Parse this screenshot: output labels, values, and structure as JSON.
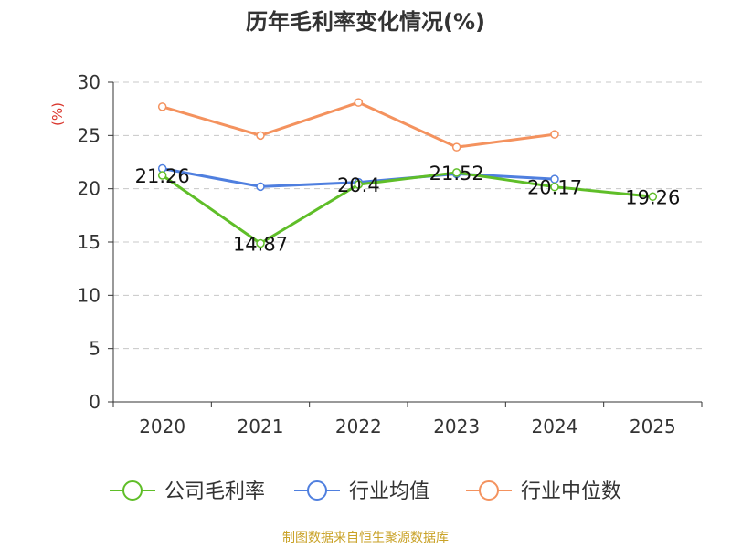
{
  "chart_data": {
    "type": "line",
    "title": "历年毛利率变化情况(%)",
    "ylabel": "(%)",
    "xlabel": "",
    "categories": [
      "2020",
      "2021",
      "2022",
      "2023",
      "2024",
      "2025"
    ],
    "ylim": [
      0,
      30
    ],
    "yticks": [
      0,
      5,
      10,
      15,
      20,
      25,
      30
    ],
    "grid": true,
    "legend_position": "bottom",
    "series": [
      {
        "name": "公司毛利率",
        "color": "#5fbe28",
        "values": [
          21.26,
          14.87,
          20.4,
          21.52,
          20.17,
          19.26
        ],
        "labels": [
          "21.26",
          "14.87",
          "20.4",
          "21.52",
          "20.17",
          "19.26"
        ]
      },
      {
        "name": "行业均值",
        "color": "#4f7fdf",
        "values": [
          21.9,
          20.2,
          20.6,
          21.4,
          20.9,
          null
        ]
      },
      {
        "name": "行业中位数",
        "color": "#f4925e",
        "values": [
          27.7,
          25.0,
          28.1,
          23.9,
          25.1,
          null
        ]
      }
    ]
  },
  "footer": {
    "source": "制图数据来自恒生聚源数据库"
  }
}
